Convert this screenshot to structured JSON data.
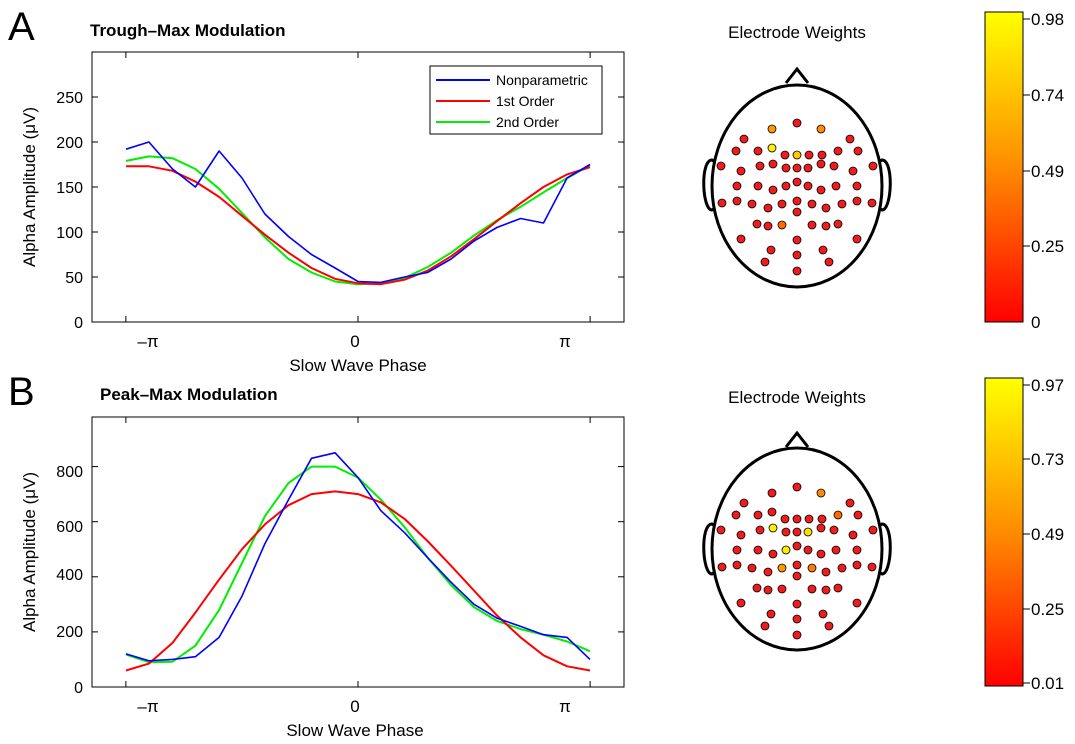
{
  "panels": [
    {
      "letter": "A",
      "title": "Trough–Max Modulation",
      "ylabel": "Alpha Amplitude (μV)",
      "xlabel": "Slow Wave Phase",
      "xticks": [
        "–π",
        "0",
        "π"
      ],
      "yticks": [
        "0",
        "50",
        "100",
        "150",
        "200",
        "250"
      ],
      "legend": [
        "Nonparametric",
        "1st Order",
        "2nd Order"
      ],
      "head_title": "Electrode Weights",
      "colorbar_ticks": [
        "0.98",
        "0.74",
        "0.49",
        "0.25",
        "0"
      ]
    },
    {
      "letter": "B",
      "title": "Peak–Max Modulation",
      "ylabel": "Alpha Amplitude (μV)",
      "xlabel": "Slow Wave Phase",
      "xticks": [
        "–π",
        "0",
        "π"
      ],
      "yticks": [
        "0",
        "200",
        "400",
        "600",
        "800"
      ],
      "head_title": "Electrode Weights",
      "colorbar_ticks": [
        "0.97",
        "0.73",
        "0.49",
        "0.25",
        "0.01"
      ]
    }
  ],
  "colors": {
    "nonparametric": "#0000ff",
    "first_order": "#ff0000",
    "second_order": "#00ee00"
  },
  "chart_data": [
    {
      "type": "line",
      "title": "Trough–Max Modulation",
      "xlabel": "Slow Wave Phase",
      "ylabel": "Alpha Amplitude (μV)",
      "xlim": [
        -3.6,
        3.6
      ],
      "ylim": [
        0,
        300
      ],
      "legend_position": "top-right",
      "x": [
        -3.14,
        -2.83,
        -2.51,
        -2.2,
        -1.88,
        -1.57,
        -1.26,
        -0.94,
        -0.63,
        -0.31,
        0,
        0.31,
        0.63,
        0.94,
        1.26,
        1.57,
        1.88,
        2.2,
        2.51,
        2.83,
        3.14
      ],
      "series": [
        {
          "name": "Nonparametric",
          "values": [
            192,
            200,
            170,
            150,
            190,
            160,
            120,
            95,
            75,
            60,
            45,
            44,
            50,
            55,
            70,
            90,
            105,
            115,
            110,
            160,
            175
          ]
        },
        {
          "name": "1st Order",
          "values": [
            173,
            173,
            168,
            156,
            139,
            118,
            97,
            77,
            60,
            48,
            43,
            42,
            47,
            57,
            73,
            92,
            112,
            132,
            150,
            164,
            172
          ]
        },
        {
          "name": "2nd Order",
          "values": [
            179,
            184,
            182,
            170,
            148,
            121,
            94,
            70,
            55,
            45,
            42,
            43,
            49,
            61,
            77,
            96,
            113,
            128,
            144,
            160,
            174
          ]
        }
      ]
    },
    {
      "type": "line",
      "title": "Peak–Max Modulation",
      "xlabel": "Slow Wave Phase",
      "ylabel": "Alpha Amplitude (μV)",
      "xlim": [
        -3.6,
        3.6
      ],
      "ylim": [
        0,
        980
      ],
      "x": [
        -3.14,
        -2.83,
        -2.51,
        -2.2,
        -1.88,
        -1.57,
        -1.26,
        -0.94,
        -0.63,
        -0.31,
        0,
        0.31,
        0.63,
        0.94,
        1.26,
        1.57,
        1.88,
        2.2,
        2.51,
        2.83,
        3.14
      ],
      "series": [
        {
          "name": "Nonparametric",
          "values": [
            120,
            95,
            100,
            110,
            180,
            330,
            520,
            680,
            830,
            850,
            760,
            640,
            560,
            470,
            380,
            300,
            250,
            220,
            190,
            180,
            100
          ]
        },
        {
          "name": "1st Order",
          "values": [
            60,
            85,
            160,
            270,
            390,
            500,
            590,
            660,
            700,
            710,
            700,
            670,
            610,
            530,
            440,
            350,
            260,
            180,
            115,
            75,
            60
          ]
        },
        {
          "name": "2nd Order",
          "values": [
            118,
            90,
            92,
            150,
            280,
            450,
            620,
            740,
            800,
            800,
            760,
            680,
            580,
            470,
            370,
            290,
            240,
            210,
            190,
            165,
            130
          ]
        }
      ]
    }
  ]
}
